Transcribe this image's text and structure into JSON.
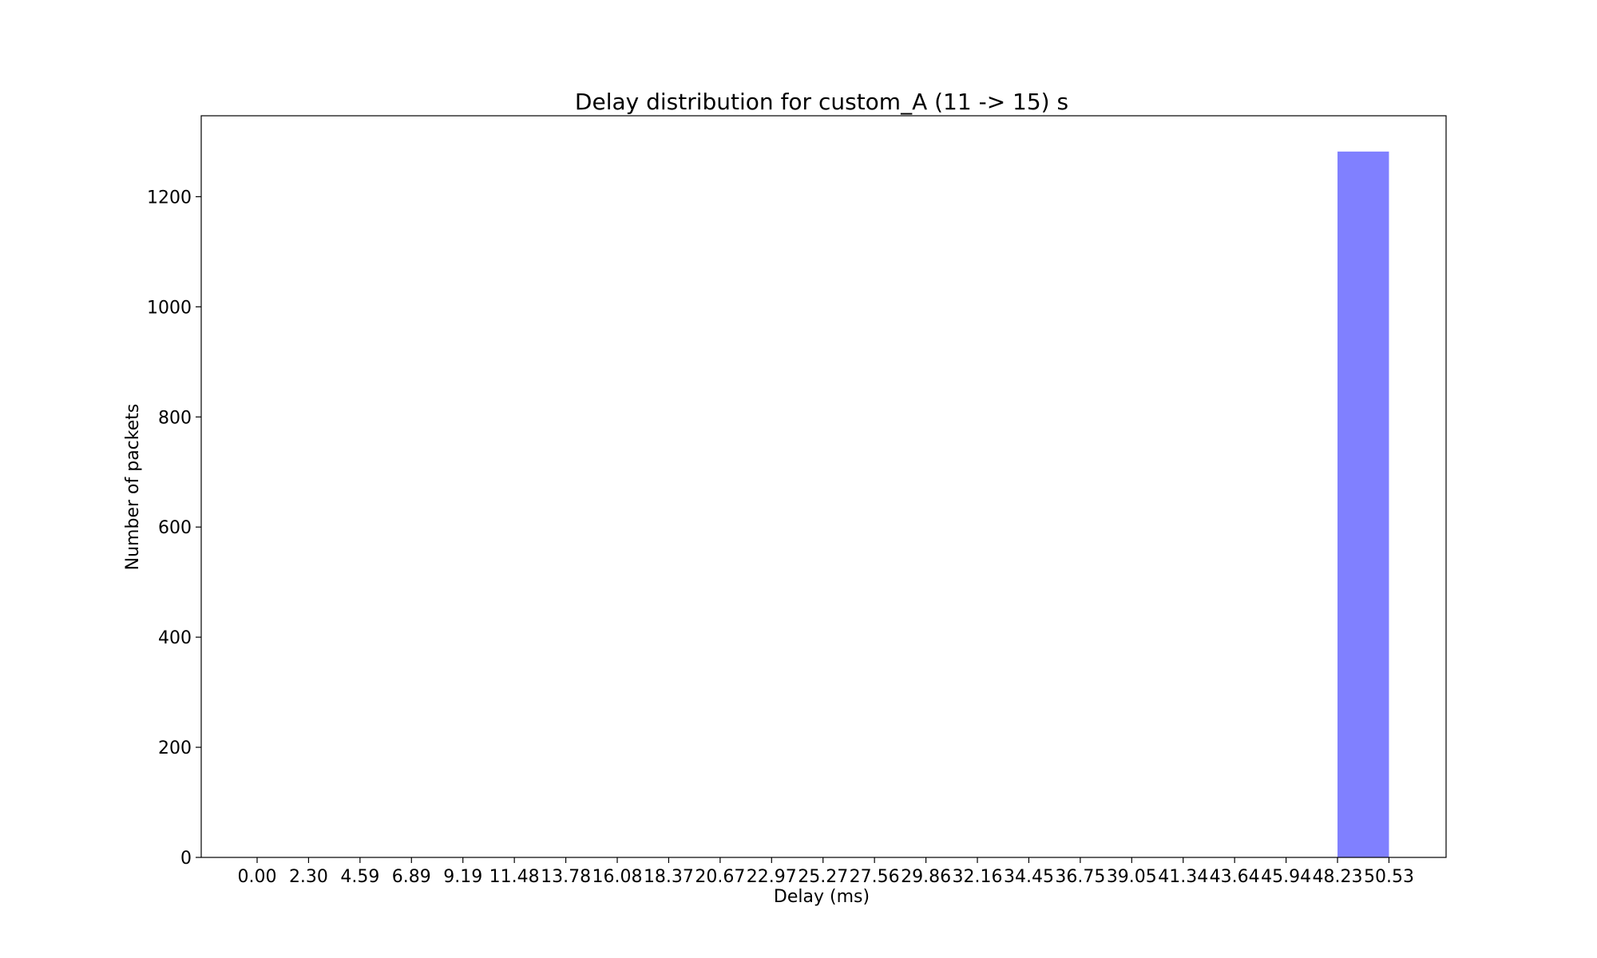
{
  "chart_data": {
    "type": "bar",
    "title": "Delay distribution for custom_A (11 -> 15) s",
    "xlabel": "Delay (ms)",
    "ylabel": "Number of packets",
    "bin_edges": [
      "0.00",
      "2.30",
      "4.59",
      "6.89",
      "9.19",
      "11.48",
      "13.78",
      "16.08",
      "18.37",
      "20.67",
      "22.97",
      "25.27",
      "27.56",
      "29.86",
      "32.16",
      "34.45",
      "36.75",
      "39.05",
      "41.34",
      "43.64",
      "45.94",
      "48.23",
      "50.53"
    ],
    "values": [
      0,
      0,
      0,
      0,
      0,
      0,
      0,
      0,
      0,
      0,
      0,
      0,
      0,
      0,
      0,
      0,
      0,
      0,
      0,
      0,
      0,
      1282
    ],
    "ylim": [
      0,
      1347
    ],
    "yticks": [
      0,
      200,
      400,
      600,
      800,
      1000,
      1200
    ],
    "bar_color": "#8080ff",
    "grid": false,
    "legend": false
  }
}
